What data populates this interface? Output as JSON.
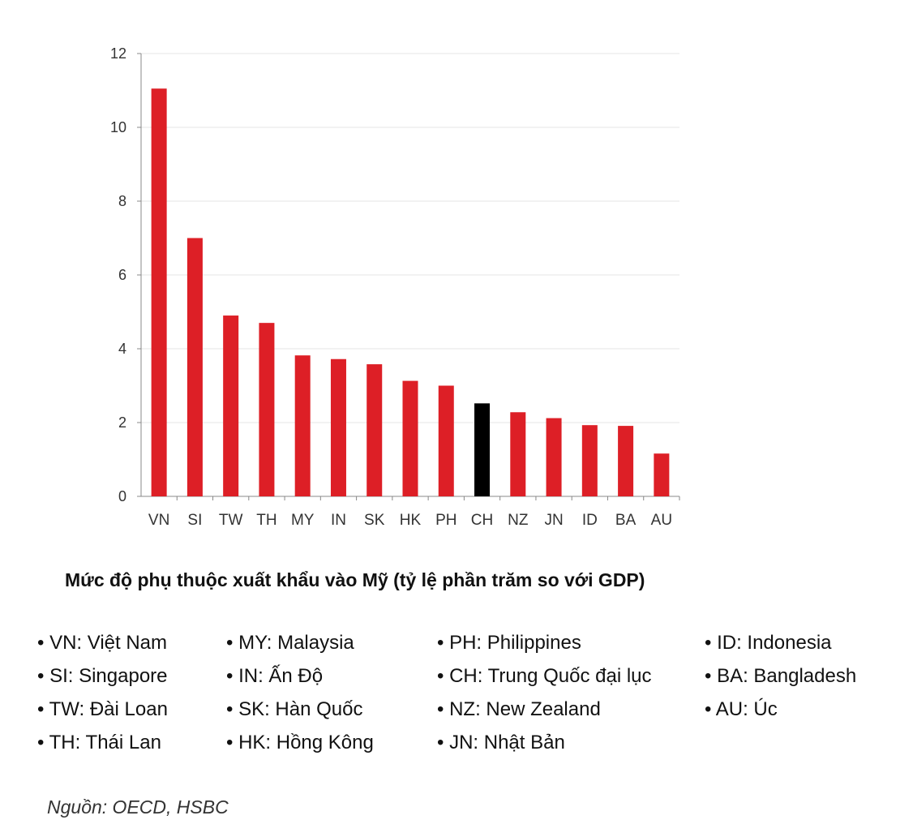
{
  "chart_data": {
    "type": "bar",
    "categories": [
      "VN",
      "SI",
      "TW",
      "TH",
      "MY",
      "IN",
      "SK",
      "HK",
      "PH",
      "CH",
      "NZ",
      "JN",
      "ID",
      "BA",
      "AU"
    ],
    "values": [
      11.05,
      7.0,
      4.9,
      4.7,
      3.82,
      3.72,
      3.58,
      3.13,
      3.0,
      2.52,
      2.28,
      2.12,
      1.93,
      1.91,
      1.16
    ],
    "highlight_category": "CH",
    "yticks": [
      0,
      2,
      4,
      6,
      8,
      10,
      12
    ],
    "ylim": [
      0,
      12
    ],
    "grid": true,
    "title": "Mức độ phụ thuộc xuất khẩu vào Mỹ (tỷ lệ phần trăm so với GDP)",
    "xlabel": "",
    "ylabel": ""
  },
  "colors": {
    "bar": "#dd1f26",
    "highlight": "#000000",
    "grid": "#e4e4e4",
    "axis": "#888888"
  },
  "legend": {
    "columns": [
      [
        "• VN: Việt Nam",
        "• SI: Singapore",
        "• TW: Đài Loan",
        "• TH: Thái Lan"
      ],
      [
        "• MY: Malaysia",
        "• IN: Ấn Độ",
        "• SK: Hàn Quốc",
        "• HK: Hồng Kông"
      ],
      [
        "• PH: Philippines",
        "• CH: Trung Quốc đại lục",
        "• NZ: New Zealand",
        "• JN: Nhật Bản"
      ],
      [
        "• ID: Indonesia",
        "• BA: Bangladesh",
        "• AU: Úc"
      ]
    ]
  },
  "source": "Nguồn: OECD, HSBC"
}
